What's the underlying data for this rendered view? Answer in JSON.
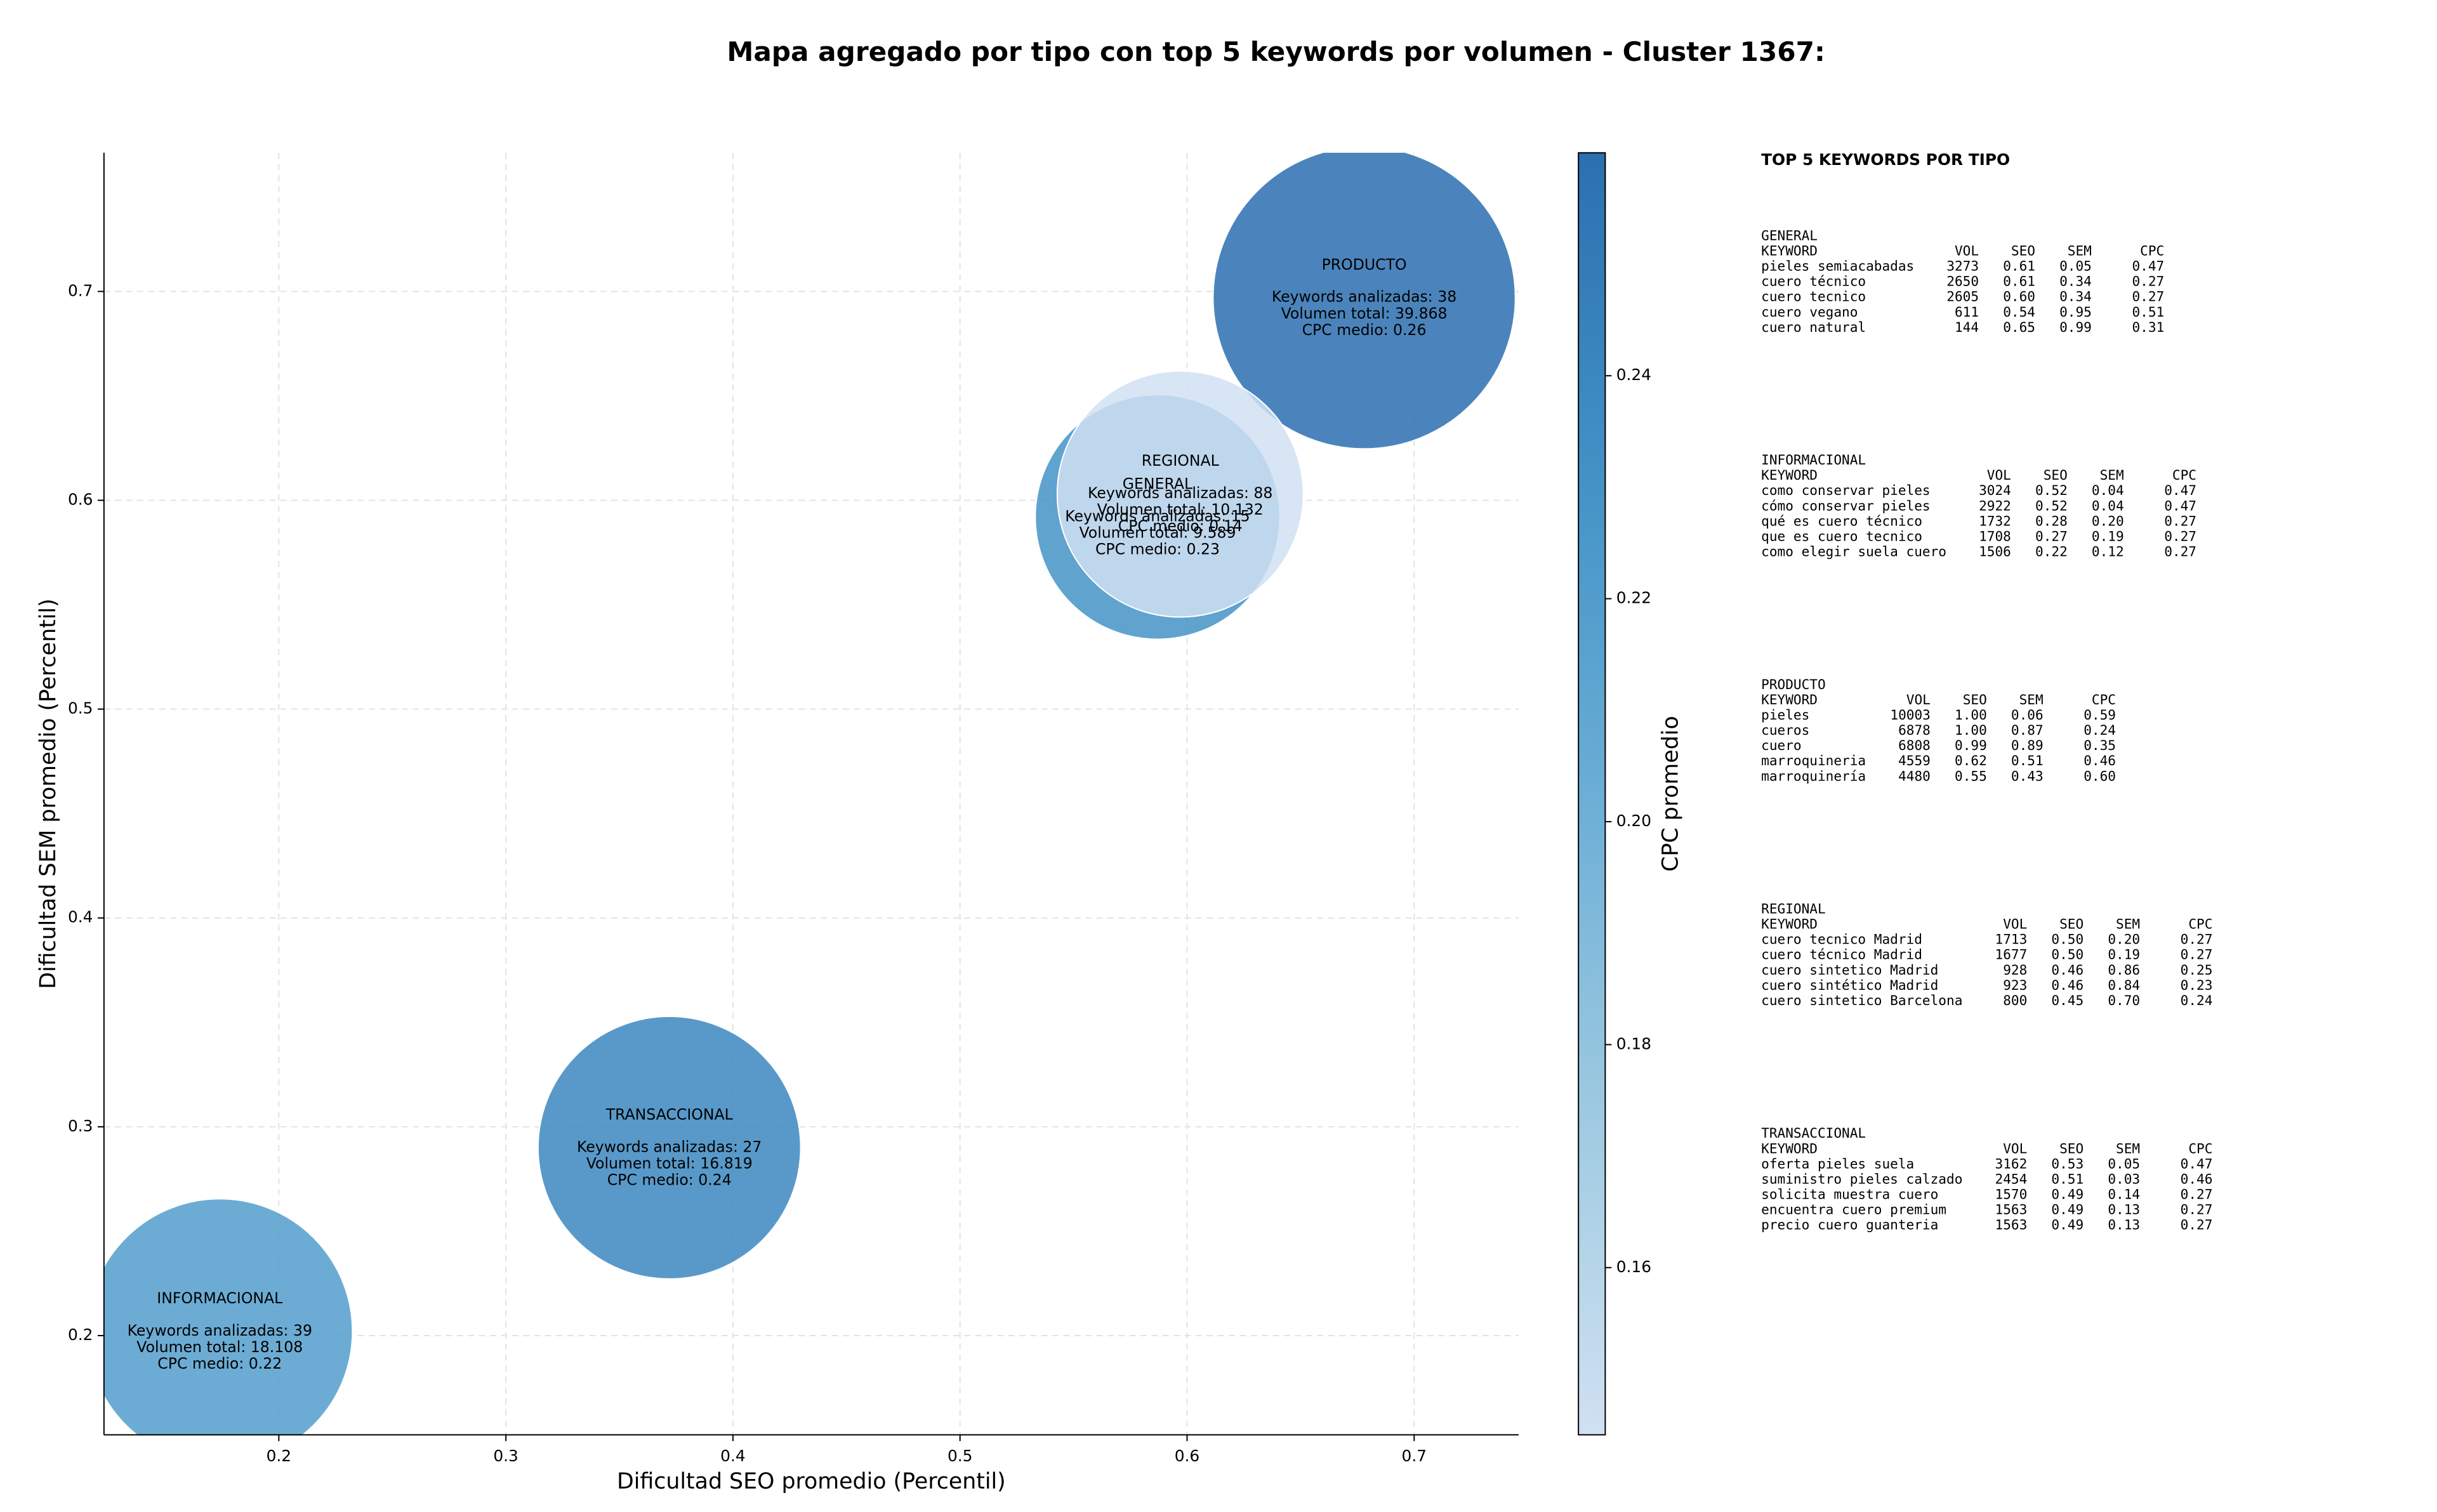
{
  "chart_data": {
    "type": "bubble",
    "title": "Mapa agregado por tipo con top 5 keywords por volumen - Cluster 1367:",
    "xlabel": "Dificultad SEO promedio (Percentil)",
    "ylabel": "Dificultad SEM promedio (Percentil)",
    "categories": [
      "GENERAL",
      "INFORMACIONAL",
      "PRODUCTO",
      "REGIONAL",
      "TRANSACCIONAL"
    ],
    "x": [
      0.587,
      0.174,
      0.678,
      0.597,
      0.372
    ],
    "values": [
      0.592,
      0.202,
      0.697,
      0.603,
      0.29
    ],
    "sizes": [
      9589,
      18108,
      39868,
      10132,
      16819
    ],
    "cpc": [
      0.23,
      0.22,
      0.26,
      0.14,
      0.24
    ],
    "annotations": [
      [
        "Keywords analizadas: 15",
        "Volumen total: 9.589",
        "CPC medio: 0.23"
      ],
      [
        "Keywords analizadas: 39",
        "Volumen total: 18.108",
        "CPC medio: 0.22"
      ],
      [
        "Keywords analizadas: 38",
        "Volumen total: 39.868",
        "CPC medio: 0.26"
      ],
      [
        "Keywords analizadas: 88",
        "Volumen total: 10.132",
        "CPC medio: 0.14"
      ],
      [
        "Keywords analizadas: 27",
        "Volumen total: 16.819",
        "CPC medio: 0.24"
      ]
    ],
    "xlim": [
      0.123,
      0.746
    ],
    "ylim": [
      0.1525,
      0.7664
    ],
    "xticks": [
      0.2,
      0.3,
      0.4,
      0.5,
      0.6,
      0.7
    ],
    "yticks": [
      0.2,
      0.3,
      0.4,
      0.5,
      0.6,
      0.7
    ],
    "grid": true,
    "colorbar": {
      "label": "CPC promedio",
      "lim": [
        0.145,
        0.26
      ],
      "ticks": [
        0.16,
        0.18,
        {
          "value": 0.2,
          "label": "0.20"
        },
        0.22,
        0.24
      ],
      "colormap": [
        "#d0e1f2",
        "#9ecae1",
        "#6baed6",
        "#4292c6",
        "#2c6fb0"
      ]
    }
  },
  "keyword_panel": {
    "title": "TOP 5 KEYWORDS POR TIPO",
    "columns": [
      "KEYWORD",
      "VOL",
      "SEO",
      "SEM",
      "CPC"
    ],
    "sections": [
      {
        "name": "GENERAL",
        "rows": [
          [
            "pieles semiacabadas",
            "3273",
            "0.61",
            "0.05",
            "0.47"
          ],
          [
            "cuero técnico",
            "2650",
            "0.61",
            "0.34",
            "0.27"
          ],
          [
            "cuero tecnico",
            "2605",
            "0.60",
            "0.34",
            "0.27"
          ],
          [
            "cuero vegano",
            "611",
            "0.54",
            "0.95",
            "0.51"
          ],
          [
            "cuero natural",
            "144",
            "0.65",
            "0.99",
            "0.31"
          ]
        ]
      },
      {
        "name": "INFORMACIONAL",
        "rows": [
          [
            "como conservar pieles",
            "3024",
            "0.52",
            "0.04",
            "0.47"
          ],
          [
            "cómo conservar pieles",
            "2922",
            "0.52",
            "0.04",
            "0.47"
          ],
          [
            "qué es cuero técnico",
            "1732",
            "0.28",
            "0.20",
            "0.27"
          ],
          [
            "que es cuero tecnico",
            "1708",
            "0.27",
            "0.19",
            "0.27"
          ],
          [
            "como elegir suela cuero",
            "1506",
            "0.22",
            "0.12",
            "0.27"
          ]
        ]
      },
      {
        "name": "PRODUCTO",
        "rows": [
          [
            "pieles",
            "10003",
            "1.00",
            "0.06",
            "0.59"
          ],
          [
            "cueros",
            "6878",
            "1.00",
            "0.87",
            "0.24"
          ],
          [
            "cuero",
            "6808",
            "0.99",
            "0.89",
            "0.35"
          ],
          [
            "marroquineria",
            "4559",
            "0.62",
            "0.51",
            "0.46"
          ],
          [
            "marroquinería",
            "4480",
            "0.55",
            "0.43",
            "0.60"
          ]
        ]
      },
      {
        "name": "REGIONAL",
        "rows": [
          [
            "cuero tecnico Madrid",
            "1713",
            "0.50",
            "0.20",
            "0.27"
          ],
          [
            "cuero técnico Madrid",
            "1677",
            "0.50",
            "0.19",
            "0.27"
          ],
          [
            "cuero sintetico Madrid",
            "928",
            "0.46",
            "0.86",
            "0.25"
          ],
          [
            "cuero sintético Madrid",
            "923",
            "0.46",
            "0.84",
            "0.23"
          ],
          [
            "cuero sintetico Barcelona",
            "800",
            "0.45",
            "0.70",
            "0.24"
          ]
        ]
      },
      {
        "name": "TRANSACCIONAL",
        "rows": [
          [
            "oferta pieles suela",
            "3162",
            "0.53",
            "0.05",
            "0.47"
          ],
          [
            "suministro pieles calzado",
            "2454",
            "0.51",
            "0.03",
            "0.46"
          ],
          [
            "solicita muestra cuero",
            "1570",
            "0.49",
            "0.14",
            "0.27"
          ],
          [
            "encuentra cuero premium",
            "1563",
            "0.49",
            "0.13",
            "0.27"
          ],
          [
            "precio cuero guanteria",
            "1563",
            "0.49",
            "0.13",
            "0.27"
          ]
        ]
      }
    ]
  }
}
